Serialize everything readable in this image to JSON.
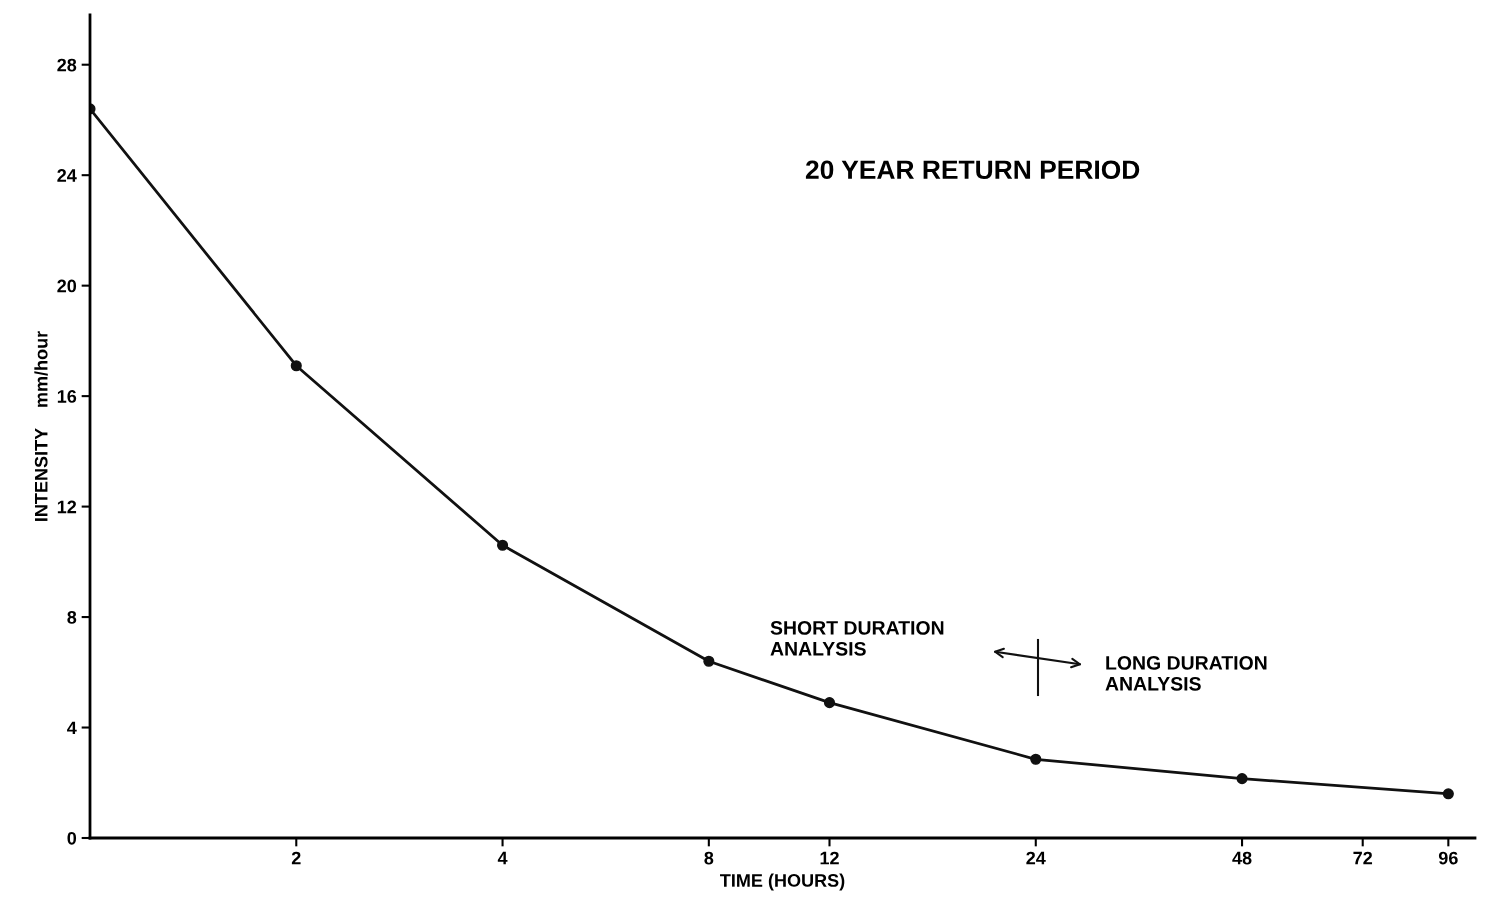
{
  "chart_data": {
    "type": "line",
    "xlabel": "TIME (HOURS)",
    "ylabel": "INTENSITY    mm/hour",
    "x": [
      1,
      2,
      4,
      8,
      12,
      24,
      48,
      96
    ],
    "series": [
      {
        "color": "#111111",
        "values": [
          26.4,
          17.1,
          10.6,
          6.4,
          4.9,
          2.85,
          2.15,
          1.6
        ]
      }
    ],
    "log": "x",
    "xlim": [
      1,
      105
    ],
    "xticks": [
      2,
      4,
      8,
      12,
      24,
      48,
      72,
      96
    ],
    "ylim": [
      0,
      29.8
    ],
    "yticks": [
      0,
      4,
      8,
      12,
      16,
      20,
      24,
      28
    ],
    "marker": "circle",
    "line_style": "solid",
    "grid": false,
    "legend": false,
    "annotations": [
      "20 YEAR RETURN PERIOD",
      "SHORT DURATION\nANALYSIS",
      "LONG DURATION\nANALYSIS"
    ]
  }
}
